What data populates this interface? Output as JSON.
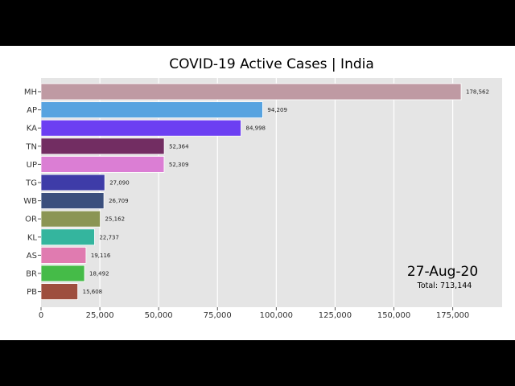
{
  "chart_data": {
    "type": "bar",
    "orientation": "horizontal",
    "title": "COVID-19 Active Cases | India",
    "categories": [
      "MH",
      "AP",
      "KA",
      "TN",
      "UP",
      "TG",
      "WB",
      "OR",
      "KL",
      "AS",
      "BR",
      "PB"
    ],
    "values": [
      178562,
      94209,
      84998,
      52364,
      52309,
      27090,
      26709,
      25162,
      22737,
      19116,
      18492,
      15608
    ],
    "value_labels": [
      "178,562",
      "94,209",
      "84,998",
      "52,364",
      "52,309",
      "27,090",
      "26,709",
      "25,162",
      "22,737",
      "19,116",
      "18,492",
      "15,608"
    ],
    "colors": [
      "#bf9aa3",
      "#57a3e0",
      "#6c3ff2",
      "#722d62",
      "#db7ed4",
      "#3e3ca8",
      "#3b4f7d",
      "#8b9554",
      "#34b59e",
      "#e07bb0",
      "#45bb48",
      "#9e4e3e"
    ],
    "xlim": [
      0,
      196000
    ],
    "xticks": [
      0,
      25000,
      50000,
      75000,
      100000,
      125000,
      150000,
      175000
    ],
    "xtick_labels": [
      "0",
      "25,000",
      "50,000",
      "75,000",
      "100,000",
      "125,000",
      "150,000",
      "175,000"
    ],
    "grid": true,
    "xlabel": "",
    "ylabel": "",
    "date": "27-Aug-20",
    "total_label": "Total: 713,144"
  }
}
